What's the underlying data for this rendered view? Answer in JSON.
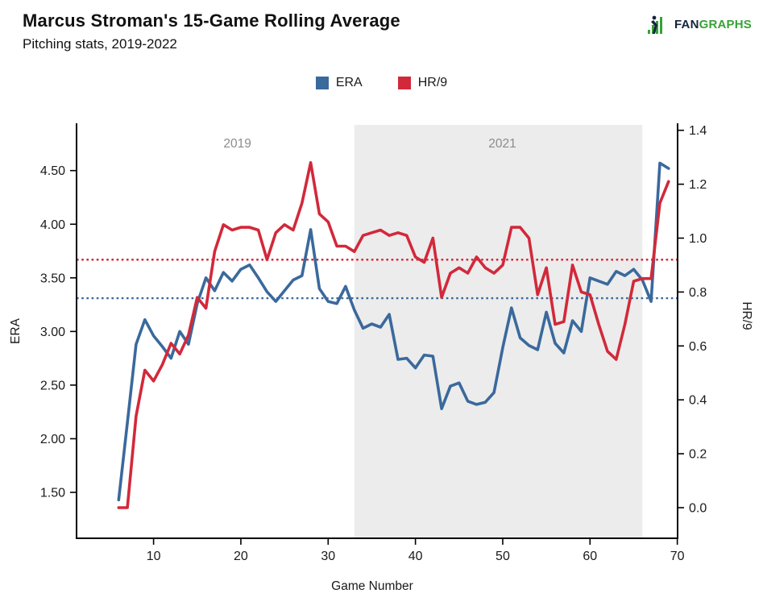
{
  "header": {
    "title": "Marcus Stroman's 15-Game Rolling Average",
    "subtitle": "Pitching stats, 2019-2022"
  },
  "logo": {
    "text_dark": "FAN",
    "text_green": "GRAPHS",
    "green": "#35a335",
    "dark": "#14243d"
  },
  "legend": [
    {
      "label": "ERA",
      "color": "#3a699c"
    },
    {
      "label": "HR/9",
      "color": "#d2293a"
    }
  ],
  "chart_data": {
    "type": "line",
    "title": "Marcus Stroman's 15-Game Rolling Average",
    "subtitle": "Pitching stats, 2019-2022",
    "xlabel": "Game Number",
    "x": [
      6,
      7,
      8,
      9,
      10,
      11,
      12,
      13,
      14,
      15,
      16,
      17,
      18,
      19,
      20,
      21,
      22,
      23,
      24,
      25,
      26,
      27,
      28,
      29,
      30,
      31,
      32,
      33,
      34,
      35,
      36,
      37,
      38,
      39,
      40,
      41,
      42,
      43,
      44,
      45,
      46,
      47,
      48,
      49,
      50,
      51,
      52,
      53,
      54,
      55,
      56,
      57,
      58,
      59,
      60,
      61,
      62,
      63,
      64,
      65,
      66,
      67,
      68,
      69
    ],
    "series": [
      {
        "name": "ERA",
        "axis": "left",
        "color": "#3a699c",
        "mean": 3.31,
        "values": [
          1.43,
          2.15,
          2.88,
          3.11,
          2.96,
          2.86,
          2.75,
          3.0,
          2.88,
          3.26,
          3.5,
          3.38,
          3.55,
          3.47,
          3.58,
          3.62,
          3.5,
          3.37,
          3.28,
          3.38,
          3.48,
          3.52,
          3.95,
          3.4,
          3.28,
          3.26,
          3.42,
          3.2,
          3.03,
          3.07,
          3.04,
          3.16,
          2.74,
          2.75,
          2.66,
          2.78,
          2.77,
          2.28,
          2.49,
          2.52,
          2.35,
          2.32,
          2.34,
          2.43,
          2.85,
          3.22,
          2.94,
          2.87,
          2.83,
          3.18,
          2.89,
          2.8,
          3.1,
          3.0,
          3.5,
          3.47,
          3.44,
          3.56,
          3.52,
          3.58,
          3.48,
          3.28,
          4.57,
          4.52
        ]
      },
      {
        "name": "HR/9",
        "axis": "right",
        "color": "#d2293a",
        "mean": 0.92,
        "values": [
          0.0,
          0.0,
          0.34,
          0.51,
          0.47,
          0.53,
          0.61,
          0.57,
          0.64,
          0.78,
          0.74,
          0.95,
          1.05,
          1.03,
          1.04,
          1.04,
          1.03,
          0.92,
          1.02,
          1.05,
          1.03,
          1.13,
          1.28,
          1.09,
          1.06,
          0.97,
          0.97,
          0.95,
          1.01,
          1.02,
          1.03,
          1.01,
          1.02,
          1.01,
          0.93,
          0.91,
          1.0,
          0.78,
          0.87,
          0.89,
          0.87,
          0.93,
          0.89,
          0.87,
          0.9,
          1.04,
          1.04,
          1.0,
          0.79,
          0.89,
          0.68,
          0.69,
          0.9,
          0.8,
          0.79,
          0.68,
          0.58,
          0.55,
          0.68,
          0.84,
          0.85,
          0.85,
          1.13,
          1.21
        ]
      }
    ],
    "left_axis": {
      "label": "ERA",
      "tick_values": [
        4.5,
        4.0,
        3.5,
        3.0,
        2.5,
        2.0,
        1.5
      ],
      "tick_labels": [
        "4.50",
        "4.00",
        "3.50",
        "3.00",
        "2.50",
        "2.00",
        "1.50"
      ]
    },
    "right_axis": {
      "label": "HR/9",
      "tick_values": [
        1.4,
        1.2,
        1.0,
        0.8,
        0.6,
        0.4,
        0.2,
        0.0
      ],
      "tick_labels": [
        "1.4",
        "1.2",
        "1.0",
        "0.8",
        "0.6",
        "0.4",
        "0.2",
        "0.0"
      ]
    },
    "x_axis": {
      "label": "Game Number",
      "tick_values": [
        10,
        20,
        30,
        40,
        50,
        60,
        70
      ],
      "tick_labels": [
        "10",
        "20",
        "30",
        "40",
        "50",
        "60",
        "70"
      ]
    },
    "reference_lines": [
      {
        "series": "ERA",
        "axis": "left",
        "value": 3.31,
        "style": "dotted",
        "color": "#3a699c"
      },
      {
        "series": "HR/9",
        "axis": "right",
        "value": 0.92,
        "style": "dotted",
        "color": "#d2293a"
      }
    ],
    "annotations": {
      "season_label_left": {
        "text": "2019",
        "x_game": 19.6
      },
      "shaded_region": {
        "text": "2021",
        "x_start_game": 33,
        "x_end_game": 66,
        "fill": "#ececec"
      },
      "label_color": "#8c8c8c"
    },
    "legend_position": "top-center",
    "grid": false
  }
}
